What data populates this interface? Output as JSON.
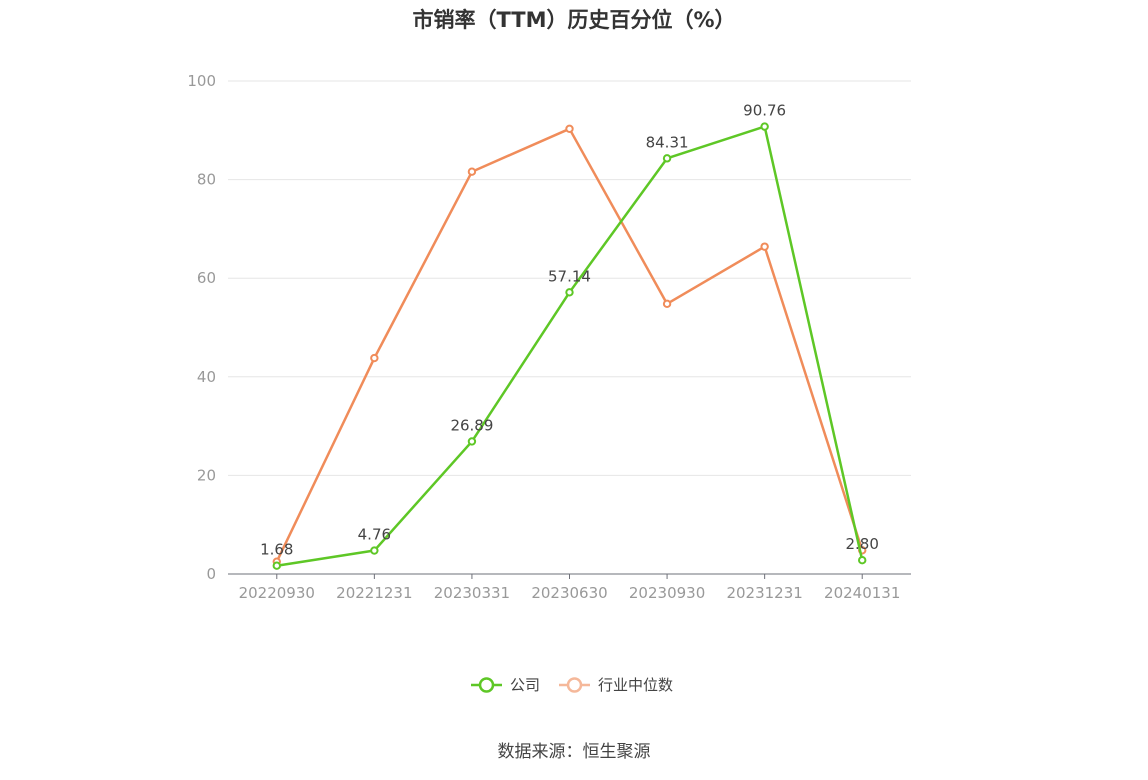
{
  "chart_data": {
    "type": "line",
    "title": "市销率（TTM）历史百分位（%）",
    "categories": [
      "20220930",
      "20221231",
      "20230331",
      "20230630",
      "20230930",
      "20231231",
      "20240131"
    ],
    "ylim": [
      0,
      100
    ],
    "yticks": [
      0,
      20,
      40,
      60,
      80,
      100
    ],
    "grid": true,
    "legend_position": "bottom",
    "series": [
      {
        "name": "公司",
        "color": "#5ec726",
        "values": [
          1.68,
          4.76,
          26.89,
          57.14,
          84.31,
          90.76,
          2.8
        ],
        "labels": [
          "1.68",
          "4.76",
          "26.89",
          "57.14",
          "84.31",
          "90.76",
          "2.80"
        ]
      },
      {
        "name": "行业中位数",
        "color": "#f08c5a",
        "values": [
          2.5,
          43.8,
          81.6,
          90.3,
          54.8,
          66.4,
          4.8
        ]
      }
    ]
  },
  "source": "数据来源：恒生聚源"
}
